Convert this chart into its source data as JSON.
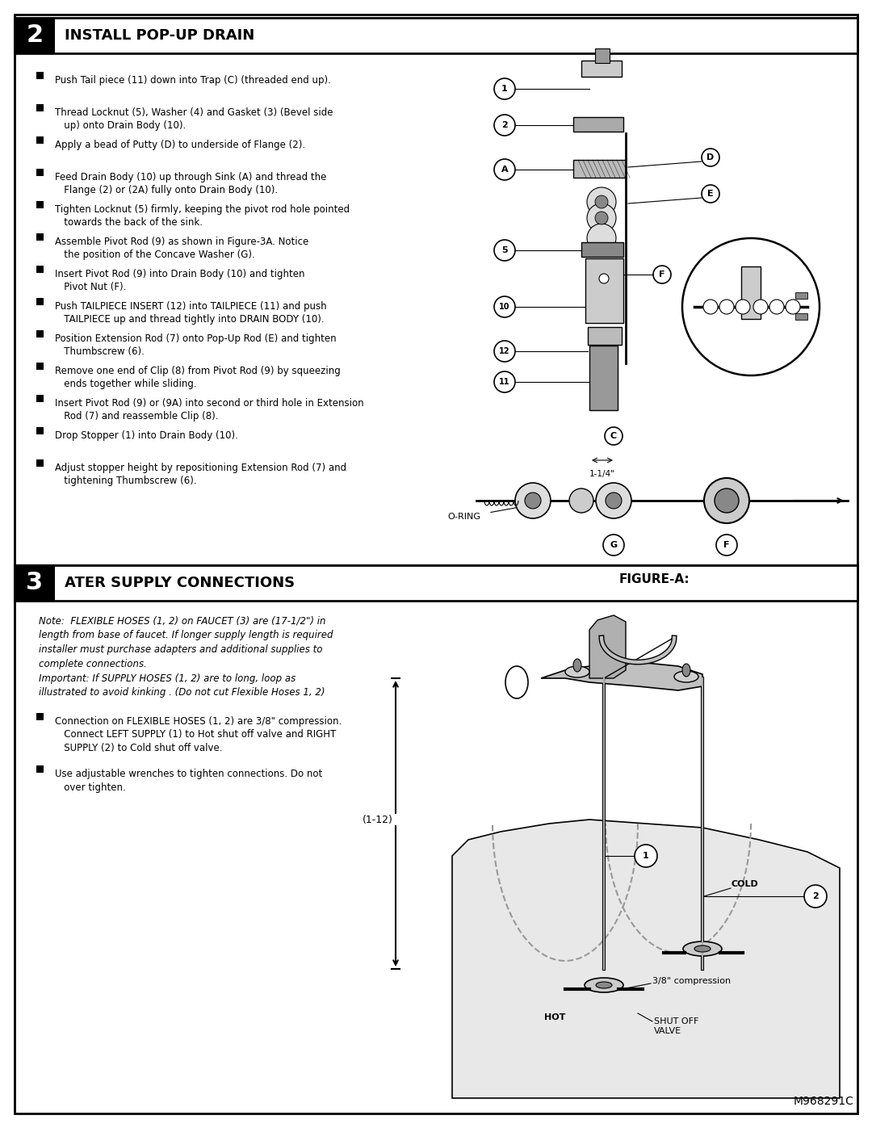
{
  "page_bg": "#ffffff",
  "section2_title": "INSTALL POP-UP DRAIN",
  "section3_title": "ATER SUPPLY CONNECTIONS",
  "section2_bullets": [
    "Push Tail piece (11) down into Trap (C) (threaded end up).",
    "Thread Locknut (5), Washer (4) and Gasket (3) (Bevel side\n   up) onto Drain Body (10).",
    "Apply a bead of Putty (D) to underside of Flange (2).",
    "Feed Drain Body (10) up through Sink (A) and thread the\n   Flange (2) or (2A) fully onto Drain Body (10).",
    "Tighten Locknut (5) firmly, keeping the pivot rod hole pointed\n   towards the back of the sink.",
    "Assemble Pivot Rod (9) as shown in Figure-3A. Notice\n   the position of the Concave Washer (G).",
    "Insert Pivot Rod (9) into Drain Body (10) and tighten\n   Pivot Nut (F).",
    "Push TAILPIECE INSERT (12) into TAILPIECE (11) and push\n   TAILPIECE up and thread tightly into DRAIN BODY (10).",
    "Position Extension Rod (7) onto Pop-Up Rod (E) and tighten\n   Thumbscrew (6).",
    "Remove one end of Clip (8) from Pivot Rod (9) by squeezing\n   ends together while sliding.",
    "Insert Pivot Rod (9) or (9A) into second or third hole in Extension\n   Rod (7) and reassemble Clip (8).",
    "Drop Stopper (1) into Drain Body (10).",
    "Adjust stopper height by repositioning Extension Rod (7) and\n   tightening Thumbscrew (6)."
  ],
  "section3_note_regular": "Note:  FLEXIBLE HOSES (1, 2) on FAUCET (3) are (17-1/2\") in\nlength from base of faucet. If longer supply length is required\ninstaller must purchase adapters and additional supplies to\ncomplete connections.",
  "section3_note_italic": "Important: If SUPPLY HOSES (1, 2) are to long, loop as\nillustrated to avoid kinking . (Do not cut Flexible Hoses 1, 2)",
  "section3_bullets": [
    "Connection on FLEXIBLE HOSES (1, 2) are 3/8\" compression.\n   Connect LEFT SUPPLY (1) to Hot shut off valve and RIGHT\n   SUPPLY (2) to Cold shut off valve.",
    "Use adjustable wrenches to tighten connections. Do not\n   over tighten."
  ],
  "footer_text": "M968291C",
  "fig_a_label": "FIGURE-A:"
}
